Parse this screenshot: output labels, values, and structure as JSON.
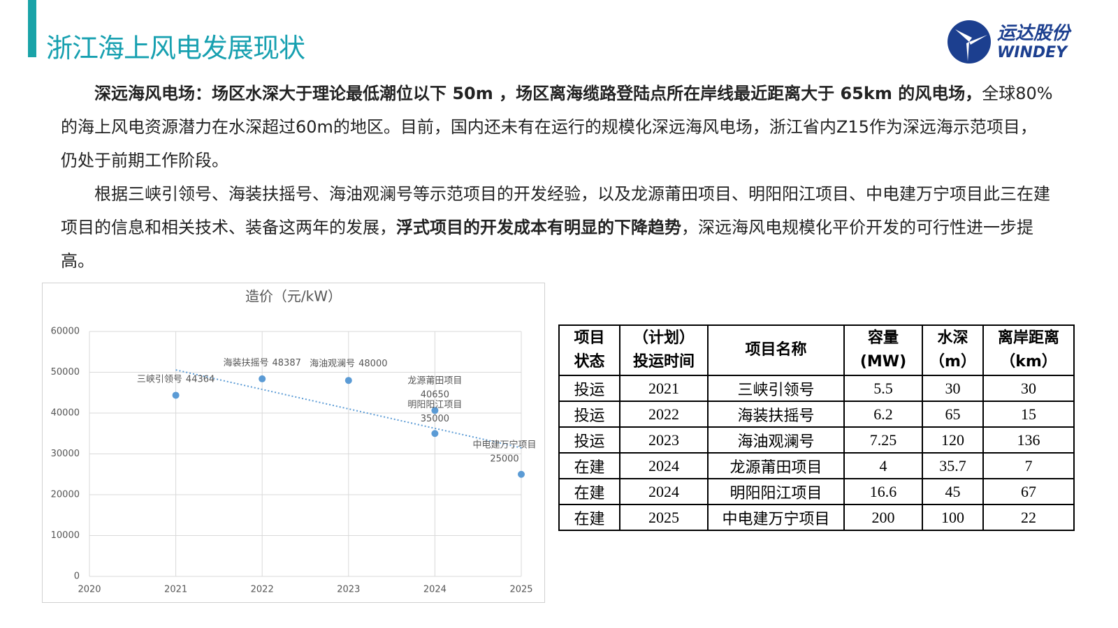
{
  "header": {
    "title": "浙江海上风电发展现状",
    "logo_cn": "运达股份",
    "logo_en": "WINDEY"
  },
  "paragraphs": [
    {
      "runs": [
        {
          "text": "深远海风电场：场区水深大于理论最低潮位以下 50m ，场区离海缆路登陆点所在岸线最近距离大于 65km 的风电场，",
          "bold": true
        },
        {
          "text": "全球80%的海上风电资源潜力在水深超过60m的地区。目前，国内还未有在运行的规模化深远海风电场，浙江省内Z15作为深远海示范项目，仍处于前期工作阶段。",
          "bold": false
        }
      ]
    },
    {
      "runs": [
        {
          "text": "根据三峡引领号、海装扶摇号、海油观澜号等示范项目的开发经验，以及龙源莆田项目、明阳阳江项目、中电建万宁项目此三在建项目的信息和相关技术、装备这两年的发展，",
          "bold": false
        },
        {
          "text": "浮式项目的开发成本有明显的下降趋势",
          "bold": true
        },
        {
          "text": "，深远海风电规模化平价开发的可行性进一步提高。",
          "bold": false
        }
      ]
    }
  ],
  "chart_data": {
    "type": "scatter",
    "title": "造价（元/kW）",
    "x": [
      2021,
      2022,
      2023,
      2024,
      2024,
      2025
    ],
    "values": [
      44364,
      48387,
      48000,
      40650,
      35000,
      25000
    ],
    "point_labels": [
      "三峡引领号",
      "海装扶摇号",
      "海油观澜号",
      "龙源莆田项目",
      "明阳阳江项目",
      "中电建万宁项目"
    ],
    "color": "#5b9bd5",
    "trendline": true,
    "xlim": [
      2020,
      2025
    ],
    "xticks": [
      2020,
      2021,
      2022,
      2023,
      2024,
      2025
    ],
    "ylim": [
      0,
      60000
    ],
    "yticks": [
      0,
      10000,
      20000,
      30000,
      40000,
      50000,
      60000
    ],
    "grid": true
  },
  "table": {
    "header": [
      [
        "项目",
        "状态"
      ],
      [
        "（计划）",
        "投运时间"
      ],
      [
        "项目名称"
      ],
      [
        "容量",
        "(MW)"
      ],
      [
        "水深",
        "（m）"
      ],
      [
        "离岸距离",
        "（km）"
      ]
    ],
    "rows": [
      [
        "投运",
        "2021",
        "三峡引领号",
        "5.5",
        "30",
        "30"
      ],
      [
        "投运",
        "2022",
        "海装扶摇号",
        "6.2",
        "65",
        "15"
      ],
      [
        "投运",
        "2023",
        "海油观澜号",
        "7.25",
        "120",
        "136"
      ],
      [
        "在建",
        "2024",
        "龙源莆田项目",
        "4",
        "35.7",
        "7"
      ],
      [
        "在建",
        "2024",
        "明阳阳江项目",
        "16.6",
        "45",
        "67"
      ],
      [
        "在建",
        "2025",
        "中电建万宁项目",
        "200",
        "100",
        "22"
      ]
    ]
  }
}
